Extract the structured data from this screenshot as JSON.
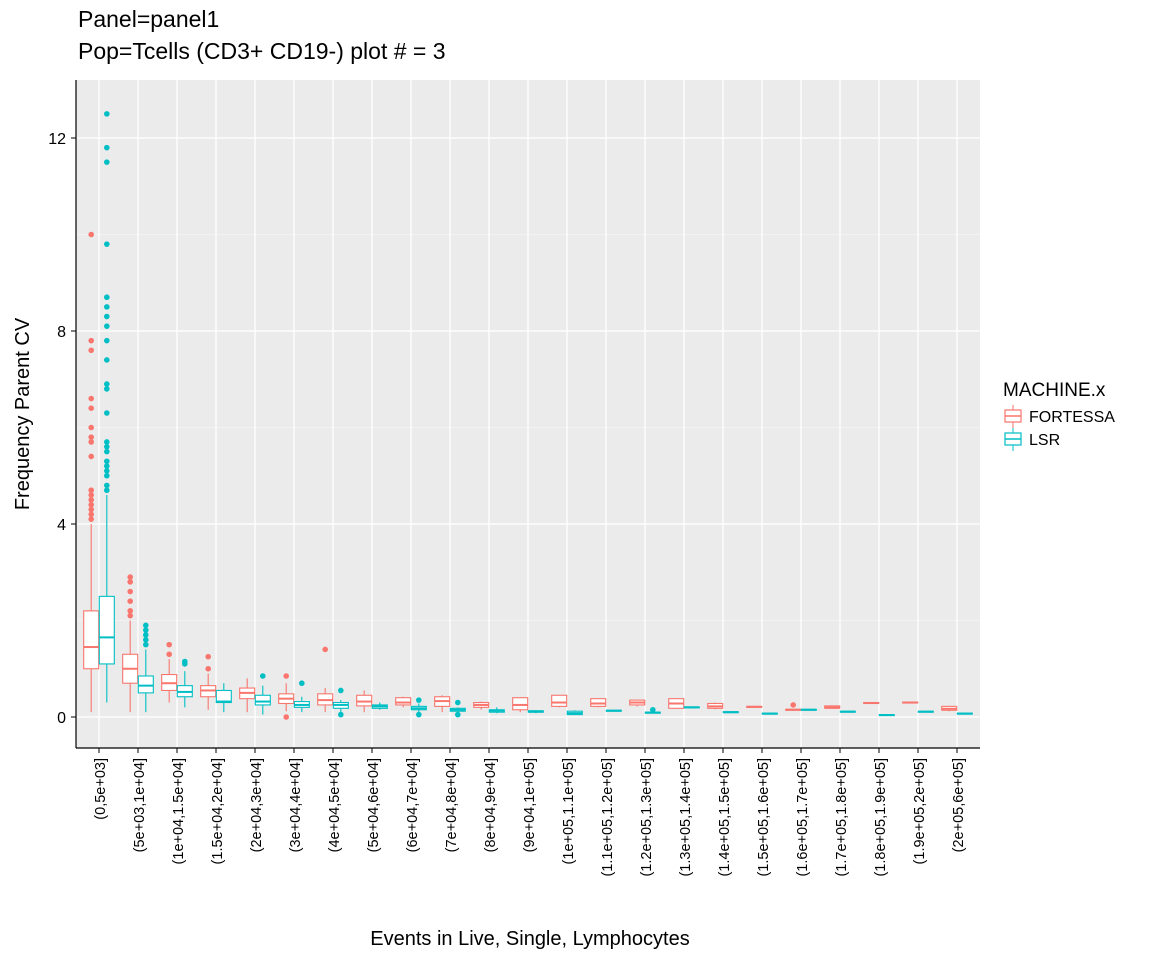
{
  "chart_data": {
    "type": "box",
    "title": [
      "Panel=panel1",
      "Pop=Tcells (CD3+ CD19-) plot # = 3"
    ],
    "xlabel": "Events in Live, Single, Lymphocytes",
    "ylabel": "Frequency Parent CV",
    "ylim": [
      -0.6,
      13.1
    ],
    "yticks": [
      0,
      4,
      8,
      12
    ],
    "grid": true,
    "legend": {
      "title": "MACHINE.x",
      "position": "right",
      "entries": [
        "FORTESSA",
        "LSR"
      ]
    },
    "categories": [
      "(0,5e+03]",
      "(5e+03,1e+04]",
      "(1e+04,1.5e+04]",
      "(1.5e+04,2e+04]",
      "(2e+04,3e+04]",
      "(3e+04,4e+04]",
      "(4e+04,5e+04]",
      "(5e+04,6e+04]",
      "(6e+04,7e+04]",
      "(7e+04,8e+04]",
      "(8e+04,9e+04]",
      "(9e+04,1e+05]",
      "(1e+05,1.1e+05]",
      "(1.1e+05,1.2e+05]",
      "(1.2e+05,1.3e+05]",
      "(1.3e+05,1.4e+05]",
      "(1.4e+05,1.5e+05]",
      "(1.5e+05,1.6e+05]",
      "(1.6e+05,1.7e+05]",
      "(1.7e+05,1.8e+05]",
      "(1.8e+05,1.9e+05]",
      "(1.9e+05,2e+05]",
      "(2e+05,6e+05]"
    ],
    "series": [
      {
        "name": "FORTESSA",
        "color": "#F8766D",
        "boxes": [
          {
            "cat": 0,
            "q1": 1.0,
            "med": 1.45,
            "q3": 2.2,
            "lo": 0.1,
            "hi": 4.0,
            "out": [
              4.1,
              4.2,
              4.3,
              4.4,
              4.5,
              4.6,
              4.7,
              5.4,
              5.7,
              5.8,
              6.0,
              6.4,
              6.6,
              7.6,
              7.8,
              10.0
            ]
          },
          {
            "cat": 1,
            "q1": 0.7,
            "med": 1.0,
            "q3": 1.3,
            "lo": 0.1,
            "hi": 2.0,
            "out": [
              2.1,
              2.2,
              2.4,
              2.6,
              2.8,
              2.9
            ]
          },
          {
            "cat": 2,
            "q1": 0.55,
            "med": 0.7,
            "q3": 0.88,
            "lo": 0.3,
            "hi": 1.2,
            "out": [
              1.3,
              1.5
            ]
          },
          {
            "cat": 3,
            "q1": 0.42,
            "med": 0.55,
            "q3": 0.65,
            "lo": 0.15,
            "hi": 0.9,
            "out": [
              1.0,
              1.25
            ]
          },
          {
            "cat": 4,
            "q1": 0.38,
            "med": 0.5,
            "q3": 0.6,
            "lo": 0.1,
            "hi": 0.8,
            "out": []
          },
          {
            "cat": 5,
            "q1": 0.28,
            "med": 0.38,
            "q3": 0.48,
            "lo": 0.12,
            "hi": 0.7,
            "out": [
              0.85,
              0.0
            ]
          },
          {
            "cat": 6,
            "q1": 0.25,
            "med": 0.35,
            "q3": 0.48,
            "lo": 0.1,
            "hi": 0.6,
            "out": [
              1.4
            ]
          },
          {
            "cat": 7,
            "q1": 0.23,
            "med": 0.32,
            "q3": 0.45,
            "lo": 0.1,
            "hi": 0.55,
            "out": []
          },
          {
            "cat": 8,
            "q1": 0.25,
            "med": 0.3,
            "q3": 0.4,
            "lo": 0.2,
            "hi": 0.42,
            "out": []
          },
          {
            "cat": 9,
            "q1": 0.22,
            "med": 0.33,
            "q3": 0.42,
            "lo": 0.1,
            "hi": 0.45,
            "out": []
          },
          {
            "cat": 10,
            "q1": 0.2,
            "med": 0.25,
            "q3": 0.3,
            "lo": 0.15,
            "hi": 0.32,
            "out": []
          },
          {
            "cat": 11,
            "q1": 0.15,
            "med": 0.25,
            "q3": 0.4,
            "lo": 0.1,
            "hi": 0.4,
            "out": []
          },
          {
            "cat": 12,
            "q1": 0.22,
            "med": 0.3,
            "q3": 0.45,
            "lo": 0.2,
            "hi": 0.45,
            "out": []
          },
          {
            "cat": 13,
            "q1": 0.22,
            "med": 0.28,
            "q3": 0.38,
            "lo": 0.2,
            "hi": 0.38,
            "out": []
          },
          {
            "cat": 14,
            "q1": 0.25,
            "med": 0.3,
            "q3": 0.35,
            "lo": 0.22,
            "hi": 0.35,
            "out": []
          },
          {
            "cat": 15,
            "q1": 0.18,
            "med": 0.28,
            "q3": 0.38,
            "lo": 0.18,
            "hi": 0.38,
            "out": []
          },
          {
            "cat": 16,
            "q1": 0.18,
            "med": 0.22,
            "q3": 0.28,
            "lo": 0.16,
            "hi": 0.3,
            "out": []
          },
          {
            "cat": 17,
            "q1": 0.2,
            "med": 0.21,
            "q3": 0.22,
            "lo": 0.2,
            "hi": 0.22,
            "out": []
          },
          {
            "cat": 18,
            "q1": 0.14,
            "med": 0.15,
            "q3": 0.16,
            "lo": 0.14,
            "hi": 0.16,
            "out": [
              0.25
            ]
          },
          {
            "cat": 19,
            "q1": 0.18,
            "med": 0.2,
            "q3": 0.23,
            "lo": 0.18,
            "hi": 0.23,
            "out": []
          },
          {
            "cat": 20,
            "q1": 0.28,
            "med": 0.29,
            "q3": 0.3,
            "lo": 0.28,
            "hi": 0.3,
            "out": []
          },
          {
            "cat": 21,
            "q1": 0.29,
            "med": 0.3,
            "q3": 0.31,
            "lo": 0.29,
            "hi": 0.31,
            "out": []
          },
          {
            "cat": 22,
            "q1": 0.14,
            "med": 0.17,
            "q3": 0.22,
            "lo": 0.12,
            "hi": 0.22,
            "out": []
          }
        ]
      },
      {
        "name": "LSR",
        "color": "#00BFC4",
        "boxes": [
          {
            "cat": 0,
            "q1": 1.1,
            "med": 1.65,
            "q3": 2.5,
            "lo": 0.3,
            "hi": 4.6,
            "out": [
              4.7,
              4.8,
              5.0,
              5.1,
              5.2,
              5.3,
              5.5,
              5.6,
              5.7,
              6.3,
              6.8,
              6.9,
              7.4,
              7.8,
              8.1,
              8.3,
              8.5,
              8.7,
              9.8,
              11.5,
              11.8,
              12.5
            ]
          },
          {
            "cat": 1,
            "q1": 0.5,
            "med": 0.65,
            "q3": 0.85,
            "lo": 0.1,
            "hi": 1.4,
            "out": [
              1.5,
              1.6,
              1.7,
              1.8,
              1.9
            ]
          },
          {
            "cat": 2,
            "q1": 0.42,
            "med": 0.52,
            "q3": 0.65,
            "lo": 0.2,
            "hi": 0.95,
            "out": [
              1.1,
              1.15
            ]
          },
          {
            "cat": 3,
            "q1": 0.3,
            "med": 0.32,
            "q3": 0.55,
            "lo": 0.1,
            "hi": 0.7,
            "out": []
          },
          {
            "cat": 4,
            "q1": 0.25,
            "med": 0.32,
            "q3": 0.45,
            "lo": 0.05,
            "hi": 0.65,
            "out": [
              0.85
            ]
          },
          {
            "cat": 5,
            "q1": 0.2,
            "med": 0.25,
            "q3": 0.32,
            "lo": 0.1,
            "hi": 0.42,
            "out": [
              0.7
            ]
          },
          {
            "cat": 6,
            "q1": 0.18,
            "med": 0.25,
            "q3": 0.3,
            "lo": 0.1,
            "hi": 0.35,
            "out": [
              0.55,
              0.05
            ]
          },
          {
            "cat": 7,
            "q1": 0.18,
            "med": 0.22,
            "q3": 0.25,
            "lo": 0.15,
            "hi": 0.3,
            "out": []
          },
          {
            "cat": 8,
            "q1": 0.15,
            "med": 0.18,
            "q3": 0.22,
            "lo": 0.1,
            "hi": 0.28,
            "out": [
              0.35,
              0.05
            ]
          },
          {
            "cat": 9,
            "q1": 0.12,
            "med": 0.15,
            "q3": 0.18,
            "lo": 0.1,
            "hi": 0.2,
            "out": [
              0.3,
              0.05
            ]
          },
          {
            "cat": 10,
            "q1": 0.1,
            "med": 0.13,
            "q3": 0.15,
            "lo": 0.08,
            "hi": 0.2,
            "out": []
          },
          {
            "cat": 11,
            "q1": 0.1,
            "med": 0.11,
            "q3": 0.13,
            "lo": 0.08,
            "hi": 0.14,
            "out": []
          },
          {
            "cat": 12,
            "q1": 0.05,
            "med": 0.08,
            "q3": 0.12,
            "lo": 0.04,
            "hi": 0.14,
            "out": []
          },
          {
            "cat": 13,
            "q1": 0.12,
            "med": 0.13,
            "q3": 0.14,
            "lo": 0.12,
            "hi": 0.14,
            "out": []
          },
          {
            "cat": 14,
            "q1": 0.08,
            "med": 0.09,
            "q3": 0.1,
            "lo": 0.08,
            "hi": 0.1,
            "out": [
              0.15
            ]
          },
          {
            "cat": 15,
            "q1": 0.19,
            "med": 0.2,
            "q3": 0.21,
            "lo": 0.19,
            "hi": 0.21,
            "out": []
          },
          {
            "cat": 16,
            "q1": 0.09,
            "med": 0.1,
            "q3": 0.11,
            "lo": 0.09,
            "hi": 0.11,
            "out": []
          },
          {
            "cat": 17,
            "q1": 0.06,
            "med": 0.07,
            "q3": 0.08,
            "lo": 0.06,
            "hi": 0.08,
            "out": []
          },
          {
            "cat": 18,
            "q1": 0.14,
            "med": 0.15,
            "q3": 0.16,
            "lo": 0.14,
            "hi": 0.16,
            "out": []
          },
          {
            "cat": 19,
            "q1": 0.1,
            "med": 0.11,
            "q3": 0.12,
            "lo": 0.1,
            "hi": 0.12,
            "out": []
          },
          {
            "cat": 20,
            "q1": 0.03,
            "med": 0.04,
            "q3": 0.05,
            "lo": 0.03,
            "hi": 0.05,
            "out": []
          },
          {
            "cat": 21,
            "q1": 0.1,
            "med": 0.11,
            "q3": 0.12,
            "lo": 0.1,
            "hi": 0.12,
            "out": []
          },
          {
            "cat": 22,
            "q1": 0.06,
            "med": 0.07,
            "q3": 0.08,
            "lo": 0.06,
            "hi": 0.08,
            "out": []
          }
        ]
      }
    ]
  }
}
